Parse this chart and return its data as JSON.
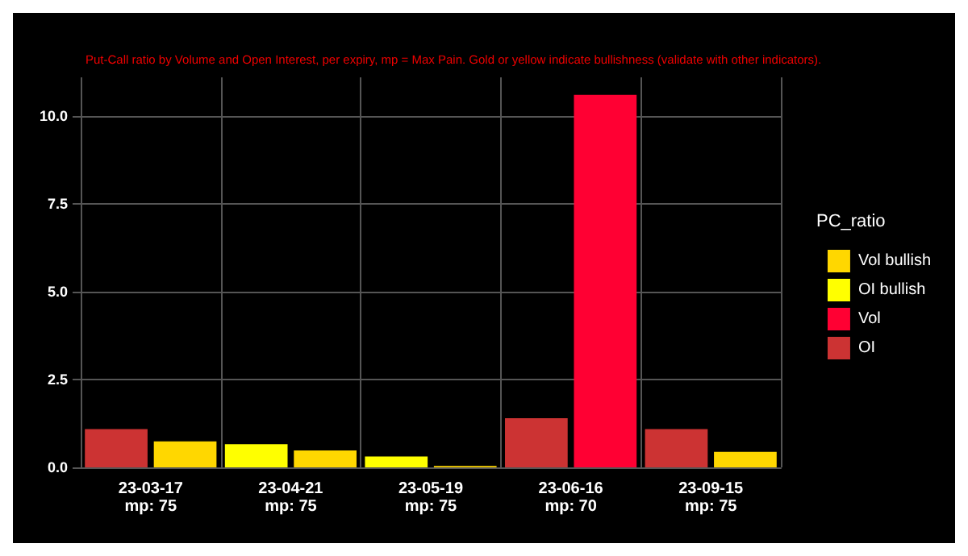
{
  "chart_data": {
    "type": "bar",
    "subtitle": "Put-Call ratio by Volume and Open Interest, per expiry, mp = Max Pain. Gold or yellow indicate bullishness (validate with other indicators).",
    "categories": [
      "23-03-17\nmp: 75",
      "23-04-21\nmp: 75",
      "23-05-19\nmp: 75",
      "23-06-16\nmp: 70",
      "23-09-15\nmp: 75"
    ],
    "series": [
      {
        "name": "Vol bullish",
        "color": "#ffd700",
        "values": [
          0.74,
          0.48,
          0.04,
          null,
          0.44
        ]
      },
      {
        "name": "OI bullish",
        "color": "#ffff00",
        "values": [
          null,
          0.66,
          0.31,
          null,
          null
        ]
      },
      {
        "name": "Vol",
        "color": "#ff0033",
        "values": [
          null,
          null,
          null,
          10.6,
          null
        ]
      },
      {
        "name": "OI",
        "color": "#cc3333",
        "values": [
          1.09,
          null,
          null,
          1.4,
          1.09
        ]
      }
    ],
    "ylim": [
      0,
      11.1
    ],
    "yticks": [
      {
        "value": 0,
        "label": "0.0"
      },
      {
        "value": 2.5,
        "label": "2.5"
      },
      {
        "value": 5,
        "label": "5.0"
      },
      {
        "value": 7.5,
        "label": "7.5"
      },
      {
        "value": 10,
        "label": "10.0"
      }
    ],
    "grid": true,
    "legend": "right",
    "legend_title": "PC_ratio"
  }
}
